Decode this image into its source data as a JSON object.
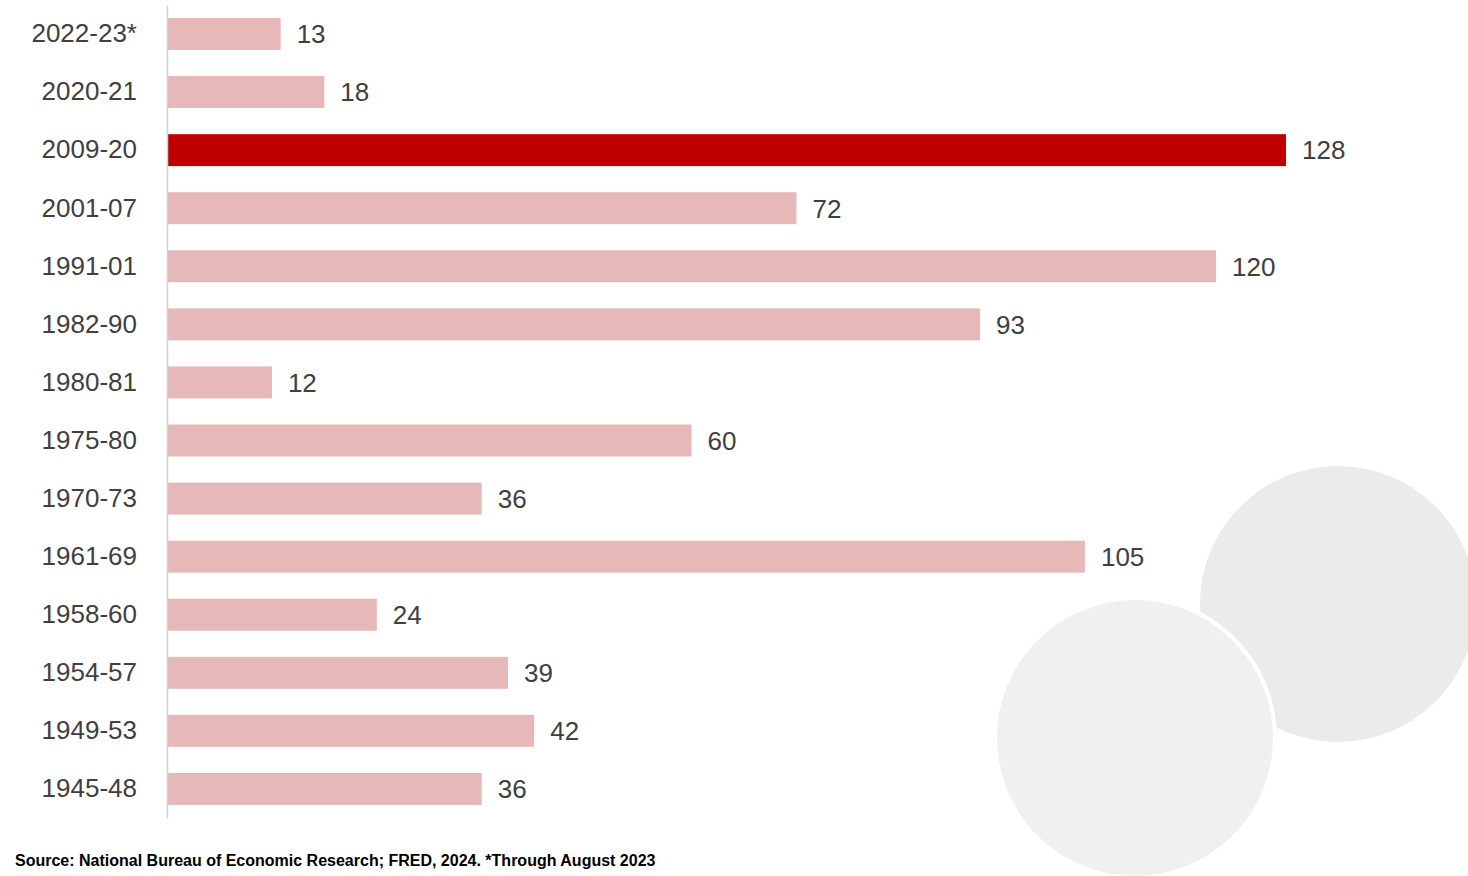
{
  "chart_data": {
    "type": "bar",
    "orientation": "horizontal",
    "categories": [
      "2022-23*",
      "2020-21",
      "2009-20",
      "2001-07",
      "1991-01",
      "1982-90",
      "1980-81",
      "1975-80",
      "1970-73",
      "1961-69",
      "1958-60",
      "1954-57",
      "1949-53",
      "1945-48"
    ],
    "values": [
      13,
      18,
      128,
      72,
      120,
      93,
      12,
      60,
      36,
      105,
      24,
      39,
      42,
      36
    ],
    "colors": [
      "#e6b8b7",
      "#e6b8b7",
      "#c00000",
      "#e6b8b7",
      "#e6b8b7",
      "#e6b8b7",
      "#e6b8b7",
      "#e6b8b7",
      "#e6b8b7",
      "#e6b8b7",
      "#e6b8b7",
      "#e6b8b7",
      "#e6b8b7",
      "#e6b8b7"
    ],
    "data_labels": true,
    "tick_labels": "y",
    "grid": false,
    "source": "Source: National Bureau of Economic Research; FRED, 2024. *Through August 2023"
  }
}
